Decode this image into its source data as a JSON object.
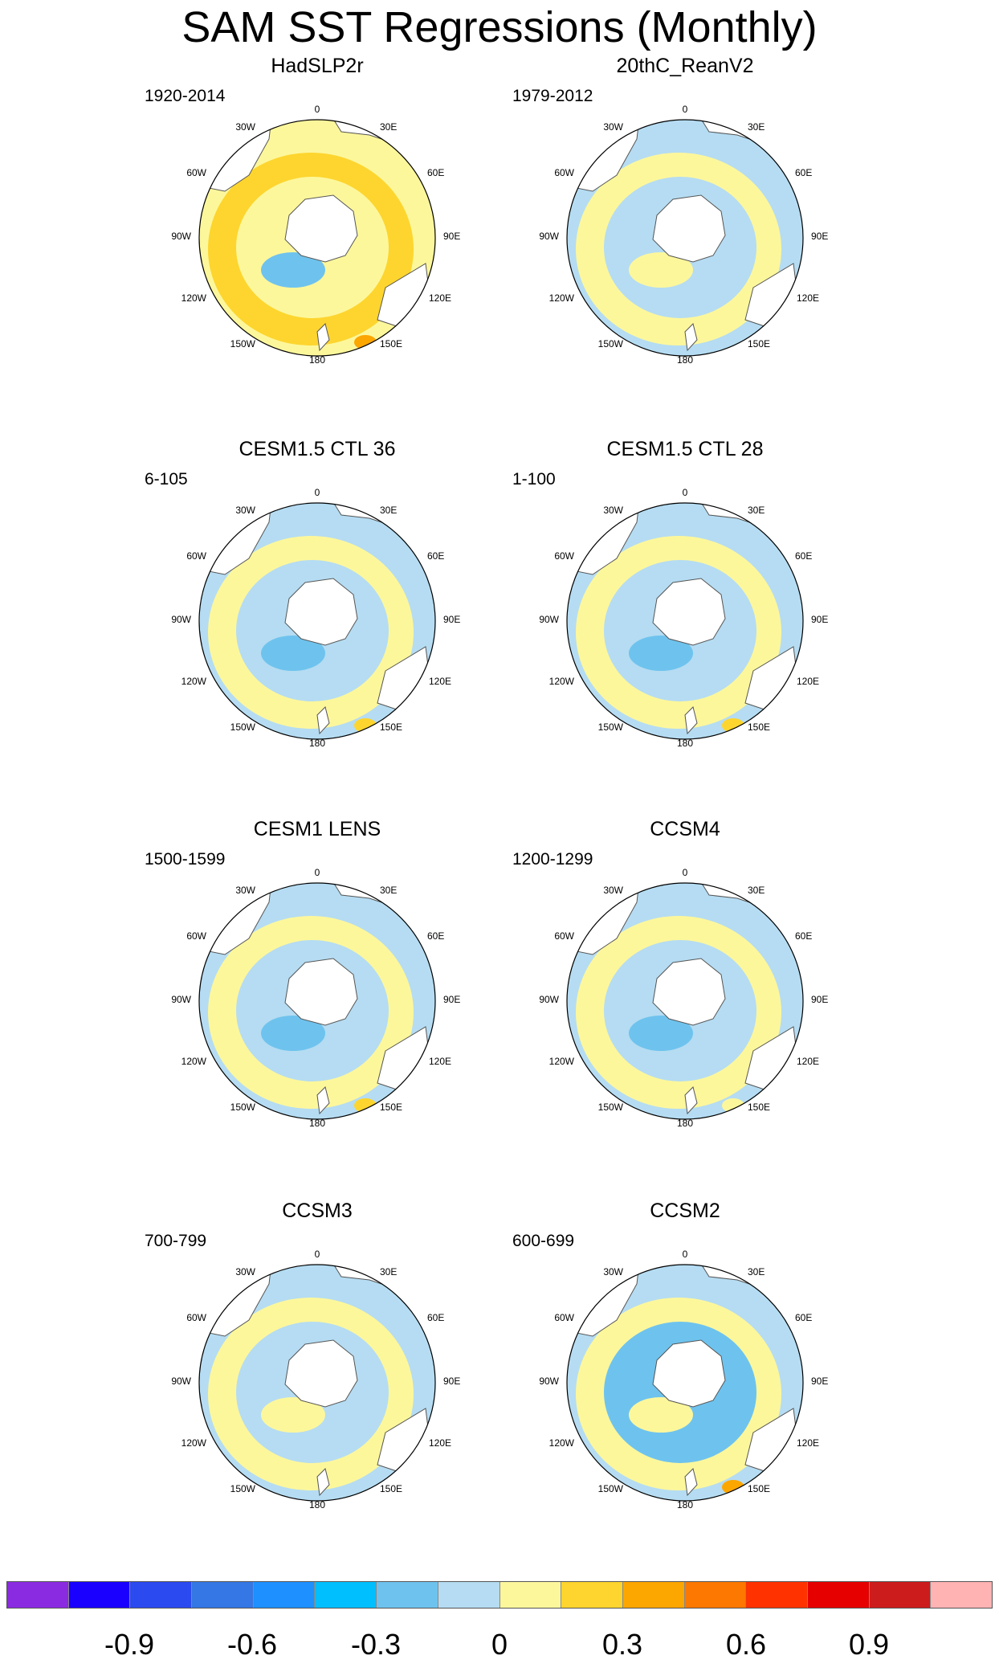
{
  "title": "SAM SST Regressions (Monthly)",
  "lon_labels": {
    "n0": "0",
    "e30": "30E",
    "e60": "60E",
    "e90": "90E",
    "e120": "120E",
    "e150": "150E",
    "s180": "180",
    "w150": "150W",
    "w120": "120W",
    "w90": "90W",
    "w60": "60W",
    "w30": "30W"
  },
  "colors": {
    "ocean_light_blue": "#b5dcf2",
    "ocean_mid_blue": "#6ec3ee",
    "ocean_dark_blue": "#1e90ff",
    "ocean_pale_yellow": "#fdf79c",
    "ocean_yellow": "#fdd52e",
    "ocean_orange": "#fca600",
    "land": "#ffffff"
  },
  "panels": [
    {
      "title": "HadSLP2r",
      "period": "1920-2014"
    },
    {
      "title": "20thC_ReanV2",
      "period": "1979-2012"
    },
    {
      "title": "CESM1.5 CTL 36",
      "period": "6-105"
    },
    {
      "title": "CESM1.5 CTL 28",
      "period": "1-100"
    },
    {
      "title": "CESM1 LENS",
      "period": "1500-1599"
    },
    {
      "title": "CCSM4",
      "period": "1200-1299"
    },
    {
      "title": "CCSM3",
      "period": "700-799"
    },
    {
      "title": "CCSM2",
      "period": "600-699"
    }
  ],
  "colorbar": {
    "colors": [
      "#8a2be2",
      "#1a00ff",
      "#2b4aef",
      "#3477e5",
      "#1e90ff",
      "#00bfff",
      "#6ec3ee",
      "#b5dcf2",
      "#fdf79c",
      "#fdd52e",
      "#fca600",
      "#fc7800",
      "#ff3200",
      "#e60000",
      "#cc1c1c",
      "#ffb3b3"
    ],
    "labels": [
      "-0.9",
      "-0.6",
      "-0.3",
      "0",
      "0.3",
      "0.6",
      "0.9"
    ]
  }
}
